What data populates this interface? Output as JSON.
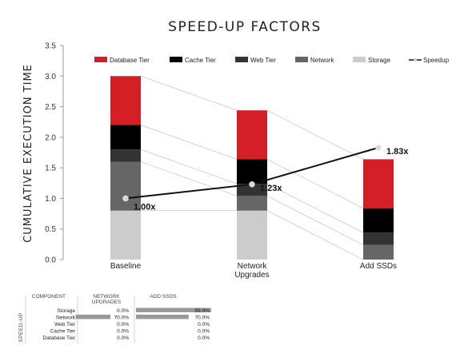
{
  "chart_data": {
    "type": "stacked-bar-with-line",
    "title": "SPEED-UP FACTORS",
    "xlabel": "",
    "ylabel": "CUMULATIVE EXECUTION TIME",
    "ylim": [
      0,
      3.5
    ],
    "yticks": [
      "0.0",
      "0.5",
      "1.0",
      "1.5",
      "2.0",
      "2.5",
      "3.0",
      "3.5"
    ],
    "categories": [
      "Baseline",
      "Network\nUpgrades",
      "Add SSDs"
    ],
    "grid": false,
    "legend_position": "top",
    "series": [
      {
        "name": "Storage",
        "color": "#cccccc",
        "values": [
          0.8,
          0.8,
          0.0
        ]
      },
      {
        "name": "Network",
        "color": "#666666",
        "values": [
          0.8,
          0.24,
          0.24
        ]
      },
      {
        "name": "Web Tier",
        "color": "#333333",
        "values": [
          0.2,
          0.2,
          0.2
        ]
      },
      {
        "name": "Cache Tier",
        "color": "#000000",
        "values": [
          0.4,
          0.4,
          0.4
        ]
      },
      {
        "name": "Database Tier",
        "color": "#d41f27",
        "values": [
          0.8,
          0.8,
          0.8
        ]
      }
    ],
    "line_series": {
      "name": "Speedup",
      "color": "#111111",
      "values": [
        1.0,
        1.23,
        1.83
      ],
      "labels": [
        "1.00x",
        "1.23x",
        "1.83x"
      ]
    },
    "legend_order": [
      "Database Tier",
      "Cache Tier",
      "Web Tier",
      "Network",
      "Storage",
      "Speedup"
    ]
  },
  "table": {
    "side_label": "SPEED-UP",
    "headers": [
      "COMPONENT",
      "NETWORK\nUPGRADES",
      "ADD SSDS"
    ],
    "rows": [
      {
        "component": "Storage",
        "network": "0.0%",
        "network_val": 0.0,
        "ssds": "99.9%",
        "ssds_val": 99.9
      },
      {
        "component": "Network",
        "network": "70.0%",
        "network_val": 70.0,
        "ssds": "70.0%",
        "ssds_val": 70.0
      },
      {
        "component": "Web Tier",
        "network": "0.0%",
        "network_val": 0.0,
        "ssds": "0.0%",
        "ssds_val": 0.0
      },
      {
        "component": "Cache Tier",
        "network": "0.0%",
        "network_val": 0.0,
        "ssds": "0.0%",
        "ssds_val": 0.0
      },
      {
        "component": "Database Tier",
        "network": "0.0%",
        "network_val": 0.0,
        "ssds": "0.0%",
        "ssds_val": 0.0
      }
    ]
  }
}
